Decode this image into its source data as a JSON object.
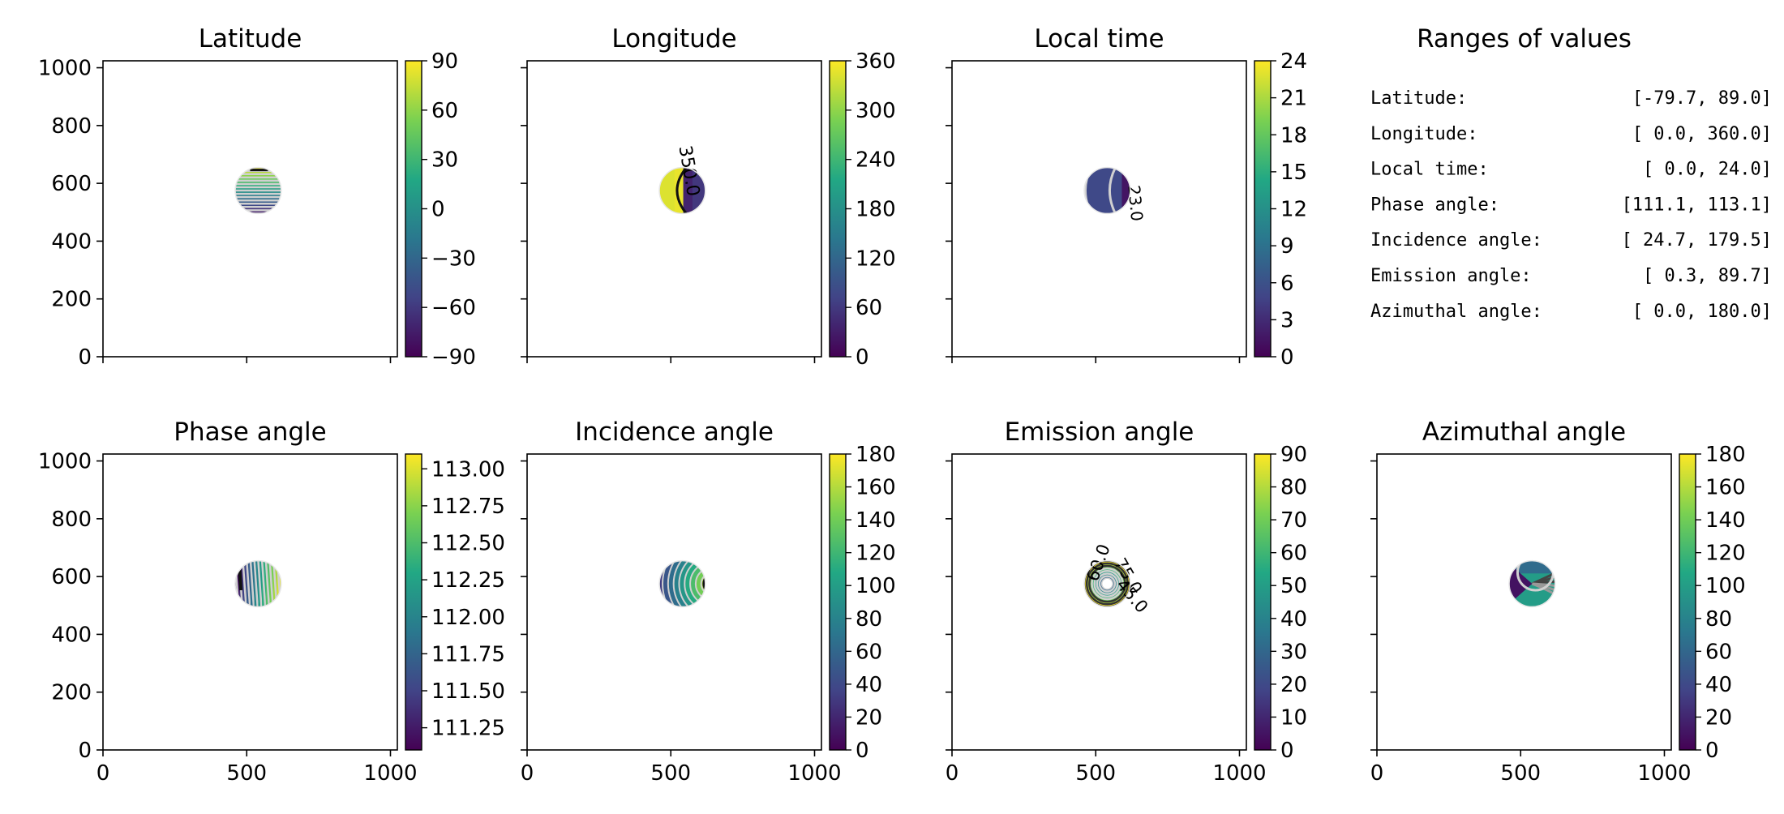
{
  "figure": {
    "panels": [
      {
        "title": "Latitude",
        "map": "latitude"
      },
      {
        "title": "Longitude",
        "map": "longitude"
      },
      {
        "title": "Local time",
        "map": "localtime"
      },
      {
        "title": "Ranges of values",
        "map": "ranges"
      },
      {
        "title": "Phase angle",
        "map": "phase"
      },
      {
        "title": "Incidence angle",
        "map": "incidence"
      },
      {
        "title": "Emission angle",
        "map": "emission"
      },
      {
        "title": "Azimuthal angle",
        "map": "azimuth"
      }
    ],
    "ranges": [
      {
        "label": "Latitude:",
        "value": "[-79.7,  89.0]"
      },
      {
        "label": "Longitude:",
        "value": "[  0.0, 360.0]"
      },
      {
        "label": "Local time:",
        "value": "[  0.0,  24.0]"
      },
      {
        "label": "Phase angle:",
        "value": "[111.1, 113.1]"
      },
      {
        "label": "Incidence angle:",
        "value": "[ 24.7, 179.5]"
      },
      {
        "label": "Emission angle:",
        "value": "[  0.3,  89.7]"
      },
      {
        "label": "Azimuthal angle:",
        "value": "[  0.0, 180.0]"
      }
    ],
    "contour_labels": {
      "longitude": "350.0",
      "localtime": "23.0",
      "emission": [
        "75.0",
        "45.0",
        "60.0"
      ]
    }
  },
  "chart_data": [
    {
      "type": "heatmap",
      "title": "Latitude",
      "x_ticks": [
        "",
        "",
        ""
      ],
      "y_ticks": [
        "0",
        "200",
        "400",
        "600",
        "800",
        "1000"
      ],
      "xlim": [
        0,
        1024
      ],
      "ylim": [
        0,
        1024
      ],
      "colorbar": {
        "min": -90,
        "max": 90,
        "ticks": [
          "90",
          "60",
          "30",
          "0",
          "−30",
          "−60",
          "−90"
        ]
      },
      "colormap": "viridis",
      "disk_center": [
        540,
        575
      ],
      "disk_radius": 80,
      "disk_range": [
        -79.7,
        89.0
      ]
    },
    {
      "type": "heatmap",
      "title": "Longitude",
      "x_ticks": [
        "",
        "",
        ""
      ],
      "y_ticks": [
        "",
        "",
        "",
        "",
        "",
        ""
      ],
      "xlim": [
        0,
        1024
      ],
      "ylim": [
        0,
        1024
      ],
      "colorbar": {
        "min": 0,
        "max": 360,
        "ticks": [
          "360",
          "300",
          "240",
          "180",
          "120",
          "60",
          "0"
        ]
      },
      "colormap": "viridis",
      "disk_center": [
        540,
        575
      ],
      "disk_radius": 80,
      "disk_range": [
        0.0,
        360.0
      ]
    },
    {
      "type": "heatmap",
      "title": "Local time",
      "x_ticks": [
        "",
        "",
        ""
      ],
      "y_ticks": [
        "",
        "",
        "",
        "",
        "",
        ""
      ],
      "xlim": [
        0,
        1024
      ],
      "ylim": [
        0,
        1024
      ],
      "colorbar": {
        "min": 0,
        "max": 24,
        "ticks": [
          "24",
          "21",
          "18",
          "15",
          "12",
          "9",
          "6",
          "3",
          "0"
        ]
      },
      "colormap": "viridis",
      "disk_center": [
        540,
        575
      ],
      "disk_radius": 80,
      "disk_range": [
        0.0,
        24.0
      ]
    },
    {
      "type": "table",
      "title": "Ranges of values"
    },
    {
      "type": "heatmap",
      "title": "Phase angle",
      "x_ticks": [
        "0",
        "500",
        "1000"
      ],
      "y_ticks": [
        "0",
        "200",
        "400",
        "600",
        "800",
        "1000"
      ],
      "xlim": [
        0,
        1024
      ],
      "ylim": [
        0,
        1024
      ],
      "colorbar": {
        "min": 111.1,
        "max": 113.1,
        "ticks": [
          "113.00",
          "112.75",
          "112.50",
          "112.25",
          "112.00",
          "111.75",
          "111.50",
          "111.25"
        ]
      },
      "colormap": "viridis",
      "disk_center": [
        540,
        575
      ],
      "disk_radius": 80,
      "disk_range": [
        111.1,
        113.1
      ]
    },
    {
      "type": "heatmap",
      "title": "Incidence angle",
      "x_ticks": [
        "0",
        "500",
        "1000"
      ],
      "y_ticks": [
        "",
        "",
        "",
        "",
        "",
        ""
      ],
      "xlim": [
        0,
        1024
      ],
      "ylim": [
        0,
        1024
      ],
      "colorbar": {
        "min": 0,
        "max": 180,
        "ticks": [
          "180",
          "160",
          "140",
          "120",
          "100",
          "80",
          "60",
          "40",
          "20",
          "0"
        ]
      },
      "colormap": "viridis",
      "disk_center": [
        540,
        575
      ],
      "disk_radius": 80,
      "disk_range": [
        24.7,
        179.5
      ]
    },
    {
      "type": "heatmap",
      "title": "Emission angle",
      "x_ticks": [
        "0",
        "500",
        "1000"
      ],
      "y_ticks": [
        "",
        "",
        "",
        "",
        "",
        ""
      ],
      "xlim": [
        0,
        1024
      ],
      "ylim": [
        0,
        1024
      ],
      "colorbar": {
        "min": 0,
        "max": 90,
        "ticks": [
          "90",
          "80",
          "70",
          "60",
          "50",
          "40",
          "30",
          "20",
          "10",
          "0"
        ]
      },
      "colormap": "viridis",
      "disk_center": [
        540,
        575
      ],
      "disk_radius": 80,
      "disk_range": [
        0.3,
        89.7
      ]
    },
    {
      "type": "heatmap",
      "title": "Azimuthal angle",
      "x_ticks": [
        "0",
        "500",
        "1000"
      ],
      "y_ticks": [
        "",
        "",
        "",
        "",
        "",
        ""
      ],
      "xlim": [
        0,
        1024
      ],
      "ylim": [
        0,
        1024
      ],
      "colorbar": {
        "min": 0,
        "max": 180,
        "ticks": [
          "180",
          "160",
          "140",
          "120",
          "100",
          "80",
          "60",
          "40",
          "20",
          "0"
        ]
      },
      "colormap": "viridis",
      "disk_center": [
        540,
        575
      ],
      "disk_radius": 80,
      "disk_range": [
        0.0,
        180.0
      ]
    }
  ],
  "colors": {
    "viridis": [
      "#440154",
      "#414487",
      "#2a788e",
      "#22a884",
      "#7ad151",
      "#fde725"
    ],
    "contour_light": "#d0d0d0",
    "contour_dark": "#111111"
  }
}
